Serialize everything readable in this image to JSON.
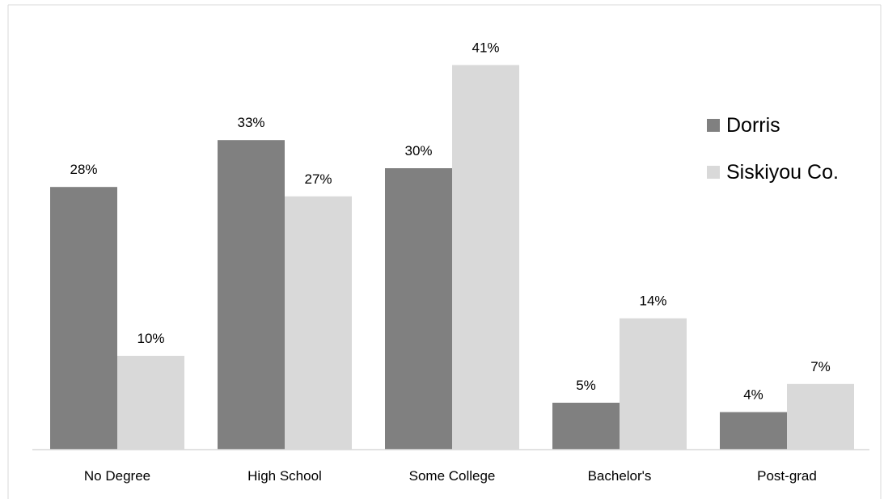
{
  "chart_data": {
    "type": "bar",
    "title": "",
    "xlabel": "",
    "ylabel": "",
    "categories": [
      "No Degree",
      "High School",
      "Some College",
      "Bachelor's",
      "Post-grad"
    ],
    "series": [
      {
        "name": "Dorris",
        "values": [
          28,
          33,
          30,
          5,
          4
        ],
        "labels": [
          "28%",
          "33%",
          "30%",
          "5%",
          "4%"
        ],
        "color": "#808080"
      },
      {
        "name": "Siskiyou Co.",
        "values": [
          10,
          27,
          41,
          14,
          7
        ],
        "labels": [
          "10%",
          "27%",
          "41%",
          "14%",
          "7%"
        ],
        "color": "#d9d9d9"
      }
    ],
    "ylim": [
      0,
      42
    ],
    "grid": false,
    "legend_position": "top-right"
  }
}
